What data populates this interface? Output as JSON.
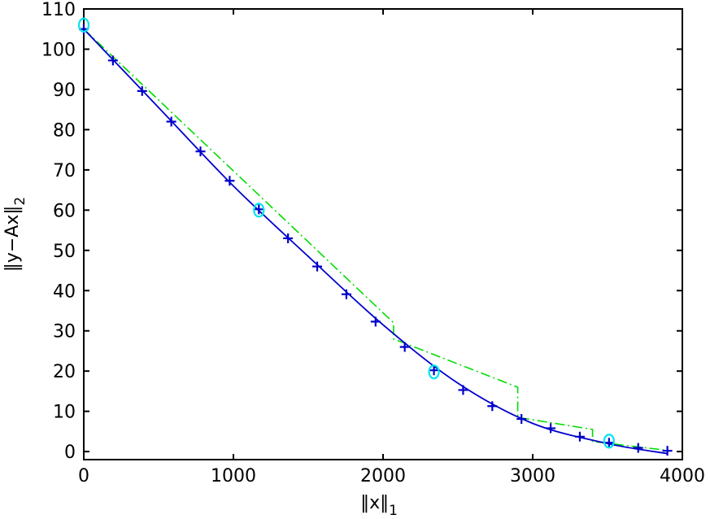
{
  "chart_data": {
    "type": "line",
    "xlabel": "‖x‖",
    "xlabel_sub": "1",
    "ylabel": "‖y−Ax‖",
    "ylabel_sub": "2",
    "xlim": [
      0,
      4000
    ],
    "ylim": [
      -2,
      110
    ],
    "xticks": [
      0,
      1000,
      2000,
      3000,
      4000
    ],
    "yticks": [
      0,
      10,
      20,
      30,
      40,
      50,
      60,
      70,
      80,
      90,
      100,
      110
    ],
    "grid": false,
    "legend": "none",
    "colors": {
      "pareto_curve": "#0000cc",
      "markers": "#0000cc",
      "approx_path": "#00dd00",
      "circles": "#00e5ee"
    },
    "series": [
      {
        "role": "pareto_curve",
        "style": "solid",
        "x": [
          0,
          500,
          1000,
          1500,
          2000,
          2500,
          3000,
          3500,
          3900
        ],
        "y": [
          105,
          85.5,
          66,
          48.5,
          31.5,
          17,
          7,
          2,
          -0.5
        ]
      },
      {
        "role": "markers",
        "style": "plus",
        "x": [
          0,
          195,
          390,
          585,
          780,
          975,
          1170,
          1365,
          1560,
          1755,
          1950,
          2145,
          2340,
          2535,
          2730,
          2925,
          3120,
          3315,
          3510,
          3705,
          3900
        ],
        "y": [
          105,
          97.2,
          89.6,
          82,
          74.6,
          67.3,
          60.2,
          53,
          46,
          39.1,
          32.3,
          26,
          20.2,
          15.3,
          11.3,
          8.1,
          5.8,
          3.7,
          2.2,
          0.9,
          0.2
        ]
      },
      {
        "role": "approx_path",
        "style": "dash-dot",
        "x": [
          0,
          2070,
          2070,
          2900,
          2900,
          3400,
          3400,
          3900
        ],
        "y": [
          105,
          32,
          28,
          16,
          8.5,
          5.5,
          2.5,
          0.3
        ]
      },
      {
        "role": "circles",
        "style": "open-circle",
        "x": [
          0,
          1170,
          2340,
          3510
        ],
        "y": [
          106,
          60,
          19.8,
          2.6
        ]
      }
    ]
  }
}
